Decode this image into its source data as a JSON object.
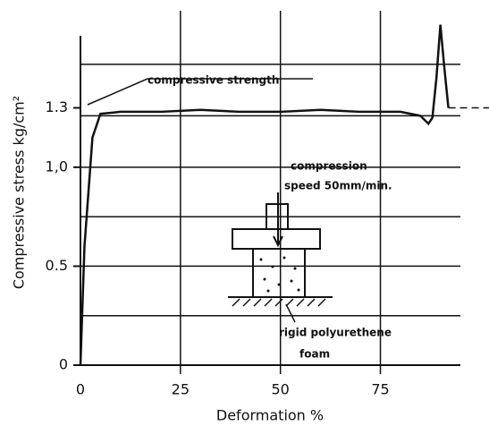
{
  "chart_data": {
    "type": "line",
    "x_label": "Deformation %",
    "y_label": "Compressive stress kg/cm²",
    "x": [
      0,
      1,
      3,
      5,
      10,
      20,
      30,
      40,
      50,
      60,
      70,
      80,
      85,
      87,
      88,
      89,
      90,
      91,
      92
    ],
    "series": [
      {
        "name": "stress",
        "color": "#111111",
        "values": [
          0,
          0.6,
          1.15,
          1.27,
          1.28,
          1.28,
          1.29,
          1.28,
          1.28,
          1.29,
          1.28,
          1.28,
          1.26,
          1.22,
          1.25,
          1.45,
          1.72,
          1.5,
          1.3
        ]
      }
    ],
    "xlim": [
      0,
      95
    ],
    "ylim": [
      0,
      1.75
    ],
    "xticks": [
      0,
      25,
      50,
      75
    ],
    "yticks": [
      0,
      0.5,
      {
        "value": 1.0,
        "label": "1,0"
      },
      1.3
    ],
    "grid_lines": [
      0.25,
      0.5,
      0.75,
      1.0,
      1.26,
      1.52
    ],
    "strength_line": 1.3,
    "annotations": {
      "strength": "compressive strength",
      "speed_1": "compression",
      "speed_2": "speed 50mm/min.",
      "foam_1": "rigid polyurethene",
      "foam_2": "foam"
    }
  }
}
